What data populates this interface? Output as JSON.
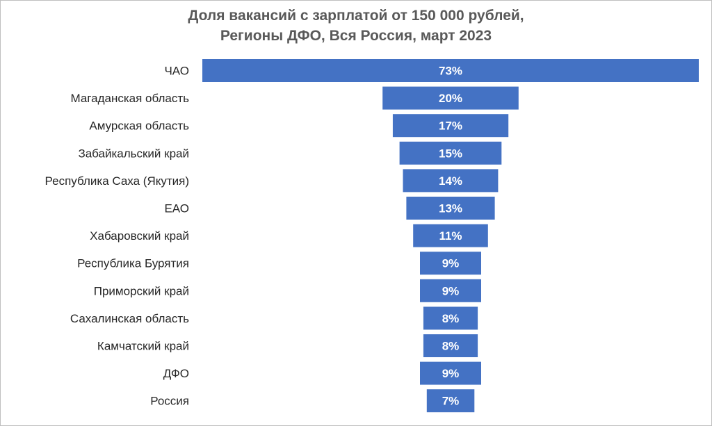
{
  "chart_data": {
    "type": "bar",
    "orientation": "horizontal",
    "layout": "centered (funnel)",
    "title_lines": [
      "Доля вакансий с зарплатой от 150 000 рублей,",
      "Регионы ДФО, Вся Россия, март 2023"
    ],
    "categories": [
      "ЧАО",
      "Магаданская область",
      "Амурская область",
      "Забайкальский край",
      "Республика Саха (Якутия)",
      "ЕАО",
      "Хабаровский край",
      "Республика Бурятия",
      "Приморский край",
      "Сахалинская область",
      "Камчатский край",
      "ДФО",
      "Россия"
    ],
    "values": [
      73,
      20,
      17,
      15,
      14,
      13,
      11,
      9,
      9,
      8,
      8,
      9,
      7
    ],
    "value_labels": [
      "73%",
      "20%",
      "17%",
      "15%",
      "14%",
      "13%",
      "11%",
      "9%",
      "9%",
      "8%",
      "8%",
      "9%",
      "7%"
    ],
    "unit": "%",
    "bar_color": "#4472c4",
    "legend": "none",
    "grid": false
  }
}
